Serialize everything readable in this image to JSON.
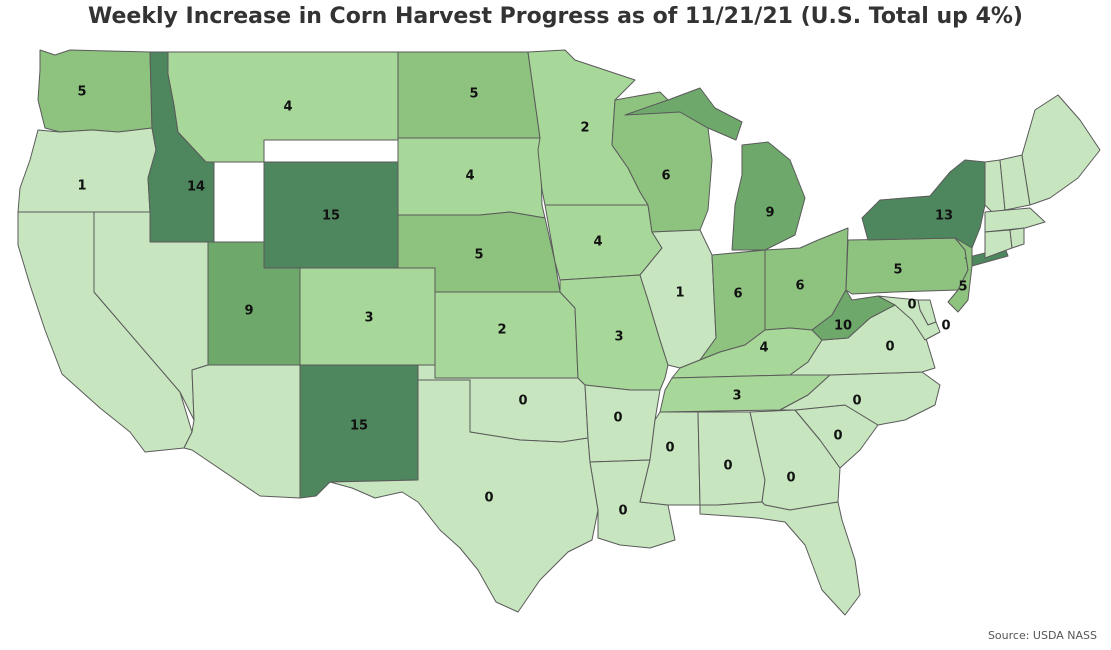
{
  "title": "Weekly Increase in Corn Harvest Progress as of 11/21/21 (U.S. Total up 4%)",
  "source": "Source: USDA NASS",
  "color_scale": [
    "#c7e6bf",
    "#a8d899",
    "#8ec27f",
    "#6ea86a",
    "#4e865e"
  ],
  "states": [
    {
      "code": "WA",
      "value": 5
    },
    {
      "code": "OR",
      "value": 1
    },
    {
      "code": "CA",
      "value": null
    },
    {
      "code": "NV",
      "value": null
    },
    {
      "code": "ID",
      "value": 14
    },
    {
      "code": "MT",
      "value": 4
    },
    {
      "code": "WY",
      "value": 15
    },
    {
      "code": "UT",
      "value": 9
    },
    {
      "code": "AZ",
      "value": null
    },
    {
      "code": "CO",
      "value": 3
    },
    {
      "code": "NM",
      "value": 15
    },
    {
      "code": "ND",
      "value": 5
    },
    {
      "code": "SD",
      "value": 4
    },
    {
      "code": "NE",
      "value": 5
    },
    {
      "code": "KS",
      "value": 2
    },
    {
      "code": "OK",
      "value": 0
    },
    {
      "code": "TX",
      "value": 0
    },
    {
      "code": "MN",
      "value": 2
    },
    {
      "code": "IA",
      "value": 4
    },
    {
      "code": "MO",
      "value": 3
    },
    {
      "code": "AR",
      "value": 0
    },
    {
      "code": "LA",
      "value": 0
    },
    {
      "code": "WI",
      "value": 6
    },
    {
      "code": "IL",
      "value": 1
    },
    {
      "code": "MI",
      "value": 9
    },
    {
      "code": "IN",
      "value": 6
    },
    {
      "code": "OH",
      "value": 6
    },
    {
      "code": "KY",
      "value": 4
    },
    {
      "code": "TN",
      "value": 3
    },
    {
      "code": "MS",
      "value": 0
    },
    {
      "code": "AL",
      "value": 0
    },
    {
      "code": "GA",
      "value": 0
    },
    {
      "code": "FL",
      "value": null
    },
    {
      "code": "SC",
      "value": 0
    },
    {
      "code": "NC",
      "value": 0
    },
    {
      "code": "VA",
      "value": 0
    },
    {
      "code": "WV",
      "value": 10
    },
    {
      "code": "PA",
      "value": 5
    },
    {
      "code": "NY",
      "value": 13
    },
    {
      "code": "NJ",
      "value": 5
    },
    {
      "code": "DE",
      "value": 0
    },
    {
      "code": "MD",
      "value": 0
    },
    {
      "code": "VT",
      "value": null
    },
    {
      "code": "NH",
      "value": null
    },
    {
      "code": "ME",
      "value": null
    },
    {
      "code": "MA",
      "value": null
    },
    {
      "code": "CT",
      "value": null
    },
    {
      "code": "RI",
      "value": null
    }
  ]
}
